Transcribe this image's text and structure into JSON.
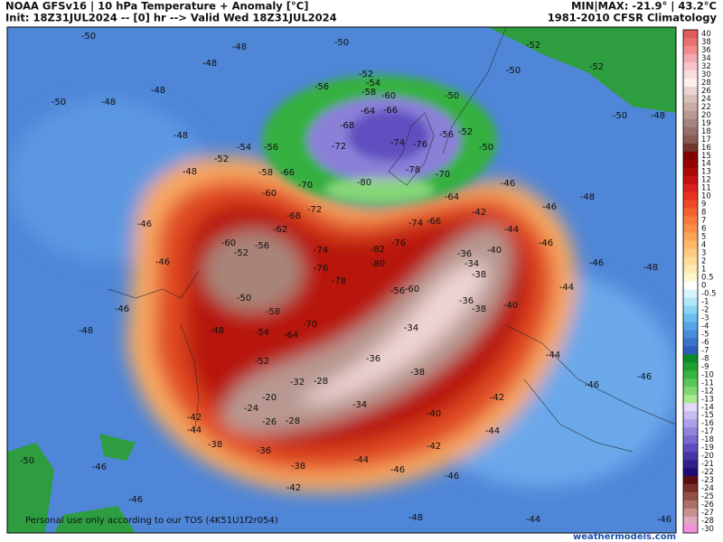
{
  "header": {
    "left_line1": "NOAA GFSv16 | 10 hPa Temperature + Anomaly [°C]",
    "left_line2": "Init: 18Z31JUL2024 -- [0] hr --> Valid Wed 18Z31JUL2024",
    "right_line1": "MIN|MAX: -21.9° | 43.2°C",
    "right_line2": "1981-2010 CFSR Climatology"
  },
  "colorbar": {
    "values": [
      40,
      38,
      36,
      34,
      32,
      30,
      28,
      26,
      24,
      22,
      20,
      19,
      18,
      17,
      16,
      15,
      14,
      13,
      12,
      11,
      10,
      9,
      8,
      7,
      6,
      5,
      4,
      3,
      2,
      1,
      0.5,
      0,
      -0.5,
      -1,
      -2,
      -3,
      -4,
      -5,
      -6,
      -7,
      -8,
      -9,
      -10,
      -11,
      -12,
      -13,
      -14,
      -15,
      -16,
      -17,
      -18,
      -19,
      -20,
      -21,
      -22,
      -23,
      -24,
      -25,
      -26,
      -27,
      -28,
      -30
    ],
    "colors": [
      "#e05a5a",
      "#e87070",
      "#f08c8c",
      "#f4a8b0",
      "#f8c4cc",
      "#fadcdc",
      "#fff0f0",
      "#e8d4d0",
      "#d8c0b8",
      "#c8aca4",
      "#b89890",
      "#a88480",
      "#98706a",
      "#885c54",
      "#70382c",
      "#800000",
      "#960000",
      "#ac0808",
      "#c41010",
      "#d82020",
      "#e83020",
      "#f04a28",
      "#f46230",
      "#f87a3c",
      "#fa9048",
      "#fca458",
      "#fdb868",
      "#fecb80",
      "#ffdc98",
      "#ffeab0",
      "#fff6d0",
      "#ffffff",
      "#d8f4fc",
      "#b0e8f8",
      "#8ad4f4",
      "#6cbcec",
      "#58a4e4",
      "#4a8cdc",
      "#3c74cc",
      "#2e5cb8",
      "#0c8a2a",
      "#20a030",
      "#38b440",
      "#58c858",
      "#80d870",
      "#a8e890",
      "#e0d8f8",
      "#c8bcf0",
      "#aca0e8",
      "#9084dc",
      "#7868d0",
      "#5e4cc0",
      "#4634a8",
      "#30208c",
      "#200c70",
      "#5a1010",
      "#7a3028",
      "#945048",
      "#ac7068",
      "#c89090",
      "#e0a8c0",
      "#f090d8"
    ]
  },
  "contour_labels": [
    "-50",
    "-50",
    "-52",
    "-52",
    "-50",
    "-48",
    "-48",
    "-50",
    "-48",
    "-48",
    "-52",
    "-54",
    "-56",
    "-58",
    "-60",
    "-64",
    "-66",
    "-68",
    "-72",
    "-74",
    "-76",
    "-80",
    "-78",
    "-70",
    "-56",
    "-52",
    "-50",
    "-50",
    "-48",
    "-48",
    "-52",
    "-54",
    "-56",
    "-58",
    "-60",
    "-66",
    "-70",
    "-72",
    "-68",
    "-62",
    "-48",
    "-50",
    "-64",
    "-46",
    "-46",
    "-48",
    "-46",
    "-46",
    "-46",
    "-48",
    "-60",
    "-52",
    "-56",
    "-74",
    "-76",
    "-78",
    "-82",
    "-80",
    "-76",
    "-74",
    "-66",
    "-42",
    "-40",
    "-44",
    "-46",
    "-46",
    "-48",
    "-44",
    "-36",
    "-34",
    "-38",
    "-36",
    "-38",
    "-40",
    "-34",
    "-36",
    "-38",
    "-28",
    "-32",
    "-24",
    "-20",
    "-26",
    "-28",
    "-34",
    "-40",
    "-42",
    "-44",
    "-46",
    "-46",
    "-44",
    "-42",
    "-44",
    "-46",
    "-46",
    "-38",
    "-36",
    "-38",
    "-42",
    "-44",
    "-42",
    "-46",
    "-50",
    "-46",
    "-48",
    "-44",
    "-46",
    "-50",
    "-58",
    "-64",
    "-70",
    "-54",
    "-52",
    "-48",
    "-56",
    "-60"
  ],
  "footer": {
    "notice": "Personal use only according to our TOS (4K51U1f2r054)",
    "site": "weathermodels.com"
  }
}
